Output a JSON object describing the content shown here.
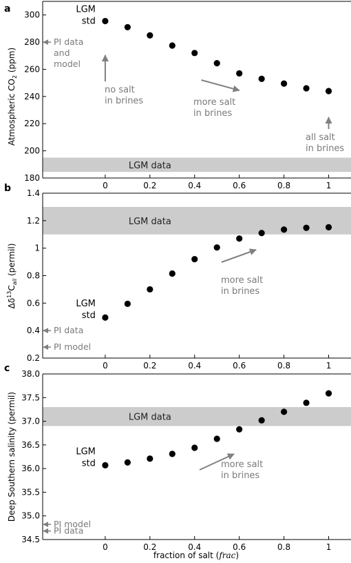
{
  "chart_data": [
    {
      "type": "scatter",
      "panel": "a",
      "ylabel": "Atmospheric CO$_2$ (ppm)",
      "ylim": [
        180,
        310
      ],
      "yticks": [
        180,
        200,
        220,
        240,
        260,
        280,
        300
      ],
      "xlim": [
        -0.28,
        1.1
      ],
      "xticks": [
        0,
        0.2,
        0.4,
        0.6,
        0.8,
        1
      ],
      "x": [
        0,
        0.1,
        0.2,
        0.3,
        0.4,
        0.5,
        0.6,
        0.7,
        0.8,
        0.9,
        1
      ],
      "y": [
        295.5,
        291,
        285,
        277.5,
        272,
        264.5,
        257,
        253,
        249.5,
        246,
        244
      ],
      "std_label": [
        "LGM",
        "std"
      ],
      "band": {
        "y0": 184.5,
        "y1": 195,
        "label": "LGM data"
      },
      "pi_markers": [
        {
          "y": 280,
          "label": [
            "PI data",
            "and",
            "model"
          ]
        }
      ],
      "annotations": [
        {
          "text": [
            "no salt",
            "in brines"
          ]
        },
        {
          "text": [
            "more salt",
            "in brines"
          ]
        },
        {
          "text": [
            "all salt",
            "in brines"
          ]
        }
      ]
    },
    {
      "type": "scatter",
      "panel": "b",
      "ylabel": "Δδ13C_all (permil)",
      "ylim": [
        0.2,
        1.4
      ],
      "yticks": [
        0.2,
        0.4,
        0.6,
        0.8,
        1.0,
        1.2,
        1.4
      ],
      "xlim": [
        -0.28,
        1.1
      ],
      "xticks": [
        0,
        0.2,
        0.4,
        0.6,
        0.8,
        1
      ],
      "x": [
        0,
        0.1,
        0.2,
        0.3,
        0.4,
        0.5,
        0.6,
        0.7,
        0.8,
        0.9,
        1
      ],
      "y": [
        0.495,
        0.595,
        0.7,
        0.815,
        0.92,
        1.005,
        1.07,
        1.11,
        1.135,
        1.148,
        1.152
      ],
      "std_label": [
        "LGM",
        "std"
      ],
      "band": {
        "y0": 1.1,
        "y1": 1.3,
        "label": "LGM data"
      },
      "pi_markers": [
        {
          "y": 0.4,
          "label": [
            "PI data"
          ]
        },
        {
          "y": 0.28,
          "label": [
            "PI model"
          ]
        }
      ],
      "annotations": [
        {
          "text": [
            "more salt",
            "in brines"
          ]
        }
      ]
    },
    {
      "type": "scatter",
      "panel": "c",
      "ylabel": "Deep Southern salinity (permil)",
      "xlabel": "fraction of salt (frac)",
      "ylim": [
        34.5,
        38.0
      ],
      "yticks": [
        34.5,
        35.0,
        35.5,
        36.0,
        36.5,
        37.0,
        37.5,
        38.0
      ],
      "xlim": [
        -0.28,
        1.1
      ],
      "xticks": [
        0,
        0.2,
        0.4,
        0.6,
        0.8,
        1
      ],
      "x": [
        0,
        0.1,
        0.2,
        0.3,
        0.4,
        0.5,
        0.6,
        0.7,
        0.8,
        0.9,
        1
      ],
      "y": [
        36.07,
        36.13,
        36.21,
        36.31,
        36.44,
        36.63,
        36.83,
        37.02,
        37.2,
        37.39,
        37.59
      ],
      "std_label": [
        "LGM",
        "std"
      ],
      "band": {
        "y0": 36.9,
        "y1": 37.3,
        "label": "LGM data"
      },
      "pi_markers": [
        {
          "y": 34.82,
          "label": [
            "PI model"
          ]
        },
        {
          "y": 34.68,
          "label": [
            "PI data"
          ]
        }
      ],
      "annotations": [
        {
          "text": [
            "more salt",
            "in brines"
          ]
        }
      ]
    }
  ]
}
